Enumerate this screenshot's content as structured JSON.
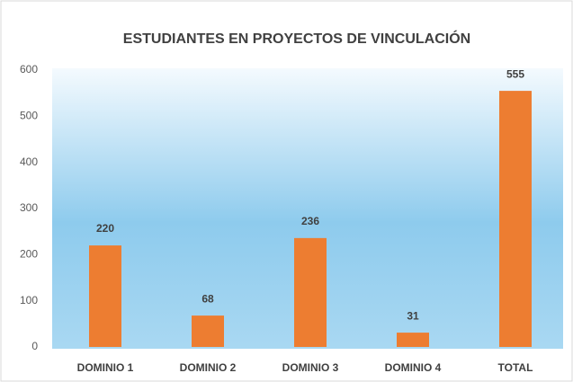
{
  "chart_data": {
    "type": "bar",
    "title": "ESTUDIANTES EN PROYECTOS DE VINCULACIÓN",
    "categories": [
      "DOMINIO 1",
      "DOMINIO 2",
      "DOMINIO 3",
      "DOMINIO 4",
      "TOTAL"
    ],
    "values": [
      220,
      68,
      236,
      31,
      555
    ],
    "color": "#ed7d31",
    "ylim": [
      0,
      600
    ],
    "yticks": [
      0,
      100,
      200,
      300,
      400,
      500,
      600
    ],
    "grid": false
  }
}
